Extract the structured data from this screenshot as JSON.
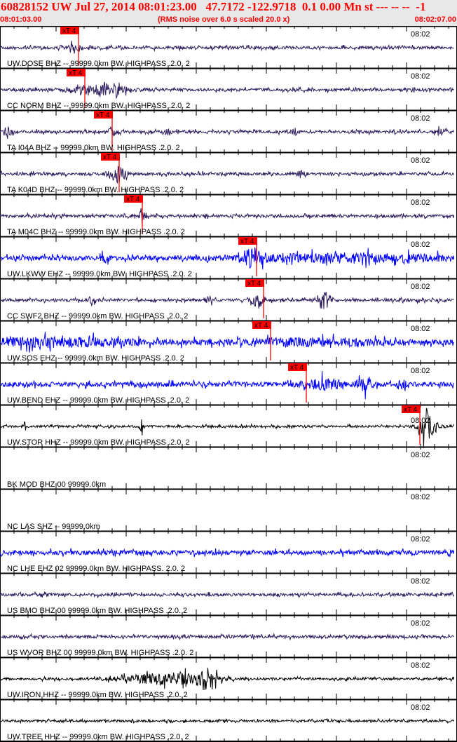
{
  "header": {
    "title": "60828152 UW Jul 27, 2014 08:01:23.00   47.7172 -122.9718  0.1 0.00 Mn st --- -- --  -1",
    "start_time": "08:01:03.00",
    "note": "(RMS noise over 6.0 s scaled 20.0 x)",
    "end_time": "08:02:07.00"
  },
  "time_tick_label": "08:02",
  "phase_label": "xT 4",
  "colors": {
    "purple": "#2b1a5c",
    "blue": "#0000ff",
    "black": "#000000",
    "pick": "#ff0000",
    "header_bg": "#e8e8e8"
  },
  "channels": [
    {
      "label": "UW.DOSE BHZ -- 99999.0km BW. HIGHPASS .2.0. 2",
      "color": "purple",
      "pick": 112
    },
    {
      "label": "CC NORM BHZ -- 99999.0km BW. HIGHPASS .2.0. 2",
      "color": "purple",
      "pick": 121
    },
    {
      "label": "TA I04A BHZ -- 99999.0km BW. HIGHPASS .2.0. 2",
      "color": "purple",
      "pick": 160
    },
    {
      "label": "TA K04D BHZ -- 99999.0km BW. HIGHPASS .2.0. 2",
      "color": "purple",
      "pick": 170
    },
    {
      "label": "TA M04C BHZ -- 99999.0km BW. HIGHPASS .2.0. 2",
      "color": "purple",
      "pick": 203
    },
    {
      "label": "UW.LKWW EHZ -- 99999.0km BW. HIGHPASS .2.0. 2",
      "color": "blue",
      "pick": 366
    },
    {
      "label": "CC SWF2 BHZ -- 99999.0km BW. HIGHPASS .2.0. 2",
      "color": "purple",
      "pick": 376
    },
    {
      "label": "UW.SOS EHZ -- 99999.0km BW. HIGHPASS .2.0. 2",
      "color": "blue",
      "pick": 386
    },
    {
      "label": "UW.BEND EHZ -- 99999.0km BW. HIGHPASS .2.0. 2",
      "color": "blue",
      "pick": 437
    },
    {
      "label": "UW.STOR HHZ -- 99999.0km BW. HIGHPASS .2.0. 2",
      "color": "black",
      "pick": 599
    },
    {
      "label": "BK MOD BHZ 00 99999.0km",
      "color": "none"
    },
    {
      "label": "NC LAS SHZ -- 99999.0km",
      "color": "none"
    },
    {
      "label": "NC LHE EHZ 02 99999.0km BW. HIGHPASS. 2.0. 2",
      "color": "blue"
    },
    {
      "label": "US BMO BHZ 00 99999.0km BW. HIGHPASS .2.0. 2",
      "color": "purple"
    },
    {
      "label": "US WVOR BHZ 00 99999.0km BW. HIGHPASS .2.0. 2",
      "color": "purple"
    },
    {
      "label": "UW.IRON HHZ -- 99999.0km BW. HIGHPASS .2.0. 2",
      "color": "black"
    },
    {
      "label": "UW.TREE HHZ -- 99999.0km BW. HIGHPASS .2.0. 2",
      "color": "black"
    }
  ]
}
